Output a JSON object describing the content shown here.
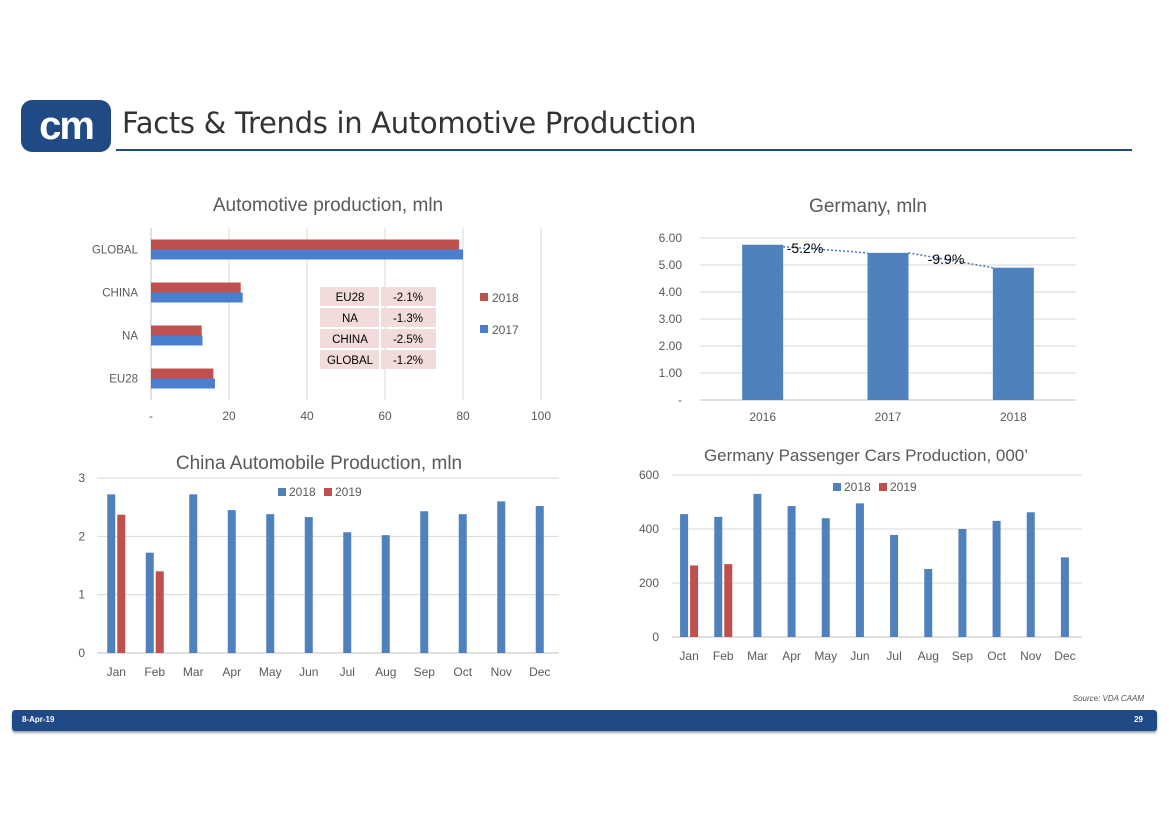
{
  "header": {
    "logo_text": "cm",
    "title": "Facts & Trends in Automotive Production"
  },
  "footer": {
    "date": "8-Apr-19",
    "page": "29",
    "source": "Source: VDA CAAM"
  },
  "colors": {
    "brand": "#1f4a86",
    "series_blue": "#4f81bd",
    "series_red": "#c0504d",
    "series_blue_light": "#4a7fd0"
  },
  "chart_data": [
    {
      "type": "bar",
      "orientation": "horizontal",
      "title": "Automotive production, mln",
      "categories": [
        "GLOBAL",
        "CHINA",
        "NA",
        "EU28"
      ],
      "series": [
        {
          "name": "2018",
          "values": [
            79.0,
            23.0,
            13.0,
            16.0
          ]
        },
        {
          "name": "2017",
          "values": [
            80.0,
            23.5,
            13.2,
            16.4
          ]
        }
      ],
      "xlim": [
        0,
        100
      ],
      "xticks": [
        "-",
        "20",
        "40",
        "60",
        "80",
        "100"
      ],
      "legend": "right",
      "change_table": [
        {
          "region": "EU28",
          "change": "-2.1%"
        },
        {
          "region": "NA",
          "change": "-1.3%"
        },
        {
          "region": "CHINA",
          "change": "-2.5%"
        },
        {
          "region": "GLOBAL",
          "change": "-1.2%"
        }
      ]
    },
    {
      "type": "bar",
      "title": "Germany, mln",
      "categories": [
        "2016",
        "2017",
        "2018"
      ],
      "values": [
        5.75,
        5.45,
        4.9
      ],
      "ylim": [
        0,
        6
      ],
      "yticks": [
        "-",
        "1.00",
        "2.00",
        "3.00",
        "4.00",
        "5.00",
        "6.00"
      ],
      "annotations": [
        "-5.2%",
        "-9.9%"
      ],
      "grid": true
    },
    {
      "type": "bar",
      "title": "China Automobile Production, mln",
      "categories": [
        "Jan",
        "Feb",
        "Mar",
        "Apr",
        "May",
        "Jun",
        "Jul",
        "Aug",
        "Sep",
        "Oct",
        "Nov",
        "Dec"
      ],
      "series": [
        {
          "name": "2018",
          "values": [
            2.72,
            1.72,
            2.72,
            2.45,
            2.38,
            2.33,
            2.07,
            2.02,
            2.43,
            2.38,
            2.6,
            2.52
          ]
        },
        {
          "name": "2019",
          "values": [
            2.37,
            1.4,
            null,
            null,
            null,
            null,
            null,
            null,
            null,
            null,
            null,
            null
          ]
        }
      ],
      "ylim": [
        0,
        3
      ],
      "yticks": [
        "0",
        "1",
        "2",
        "3"
      ],
      "legend": "top",
      "grid": true
    },
    {
      "type": "bar",
      "title": "Germany Passenger Cars Production, 000’",
      "categories": [
        "Jan",
        "Feb",
        "Mar",
        "Apr",
        "May",
        "Jun",
        "Jul",
        "Aug",
        "Sep",
        "Oct",
        "Nov",
        "Dec"
      ],
      "series": [
        {
          "name": "2018",
          "values": [
            455,
            445,
            530,
            485,
            440,
            495,
            378,
            252,
            400,
            430,
            462,
            295
          ]
        },
        {
          "name": "2019",
          "values": [
            265,
            270,
            null,
            null,
            null,
            null,
            null,
            null,
            null,
            null,
            null,
            null
          ]
        }
      ],
      "ylim": [
        0,
        600
      ],
      "yticks": [
        "0",
        "200",
        "400",
        "600"
      ],
      "legend": "top",
      "grid": true
    }
  ]
}
